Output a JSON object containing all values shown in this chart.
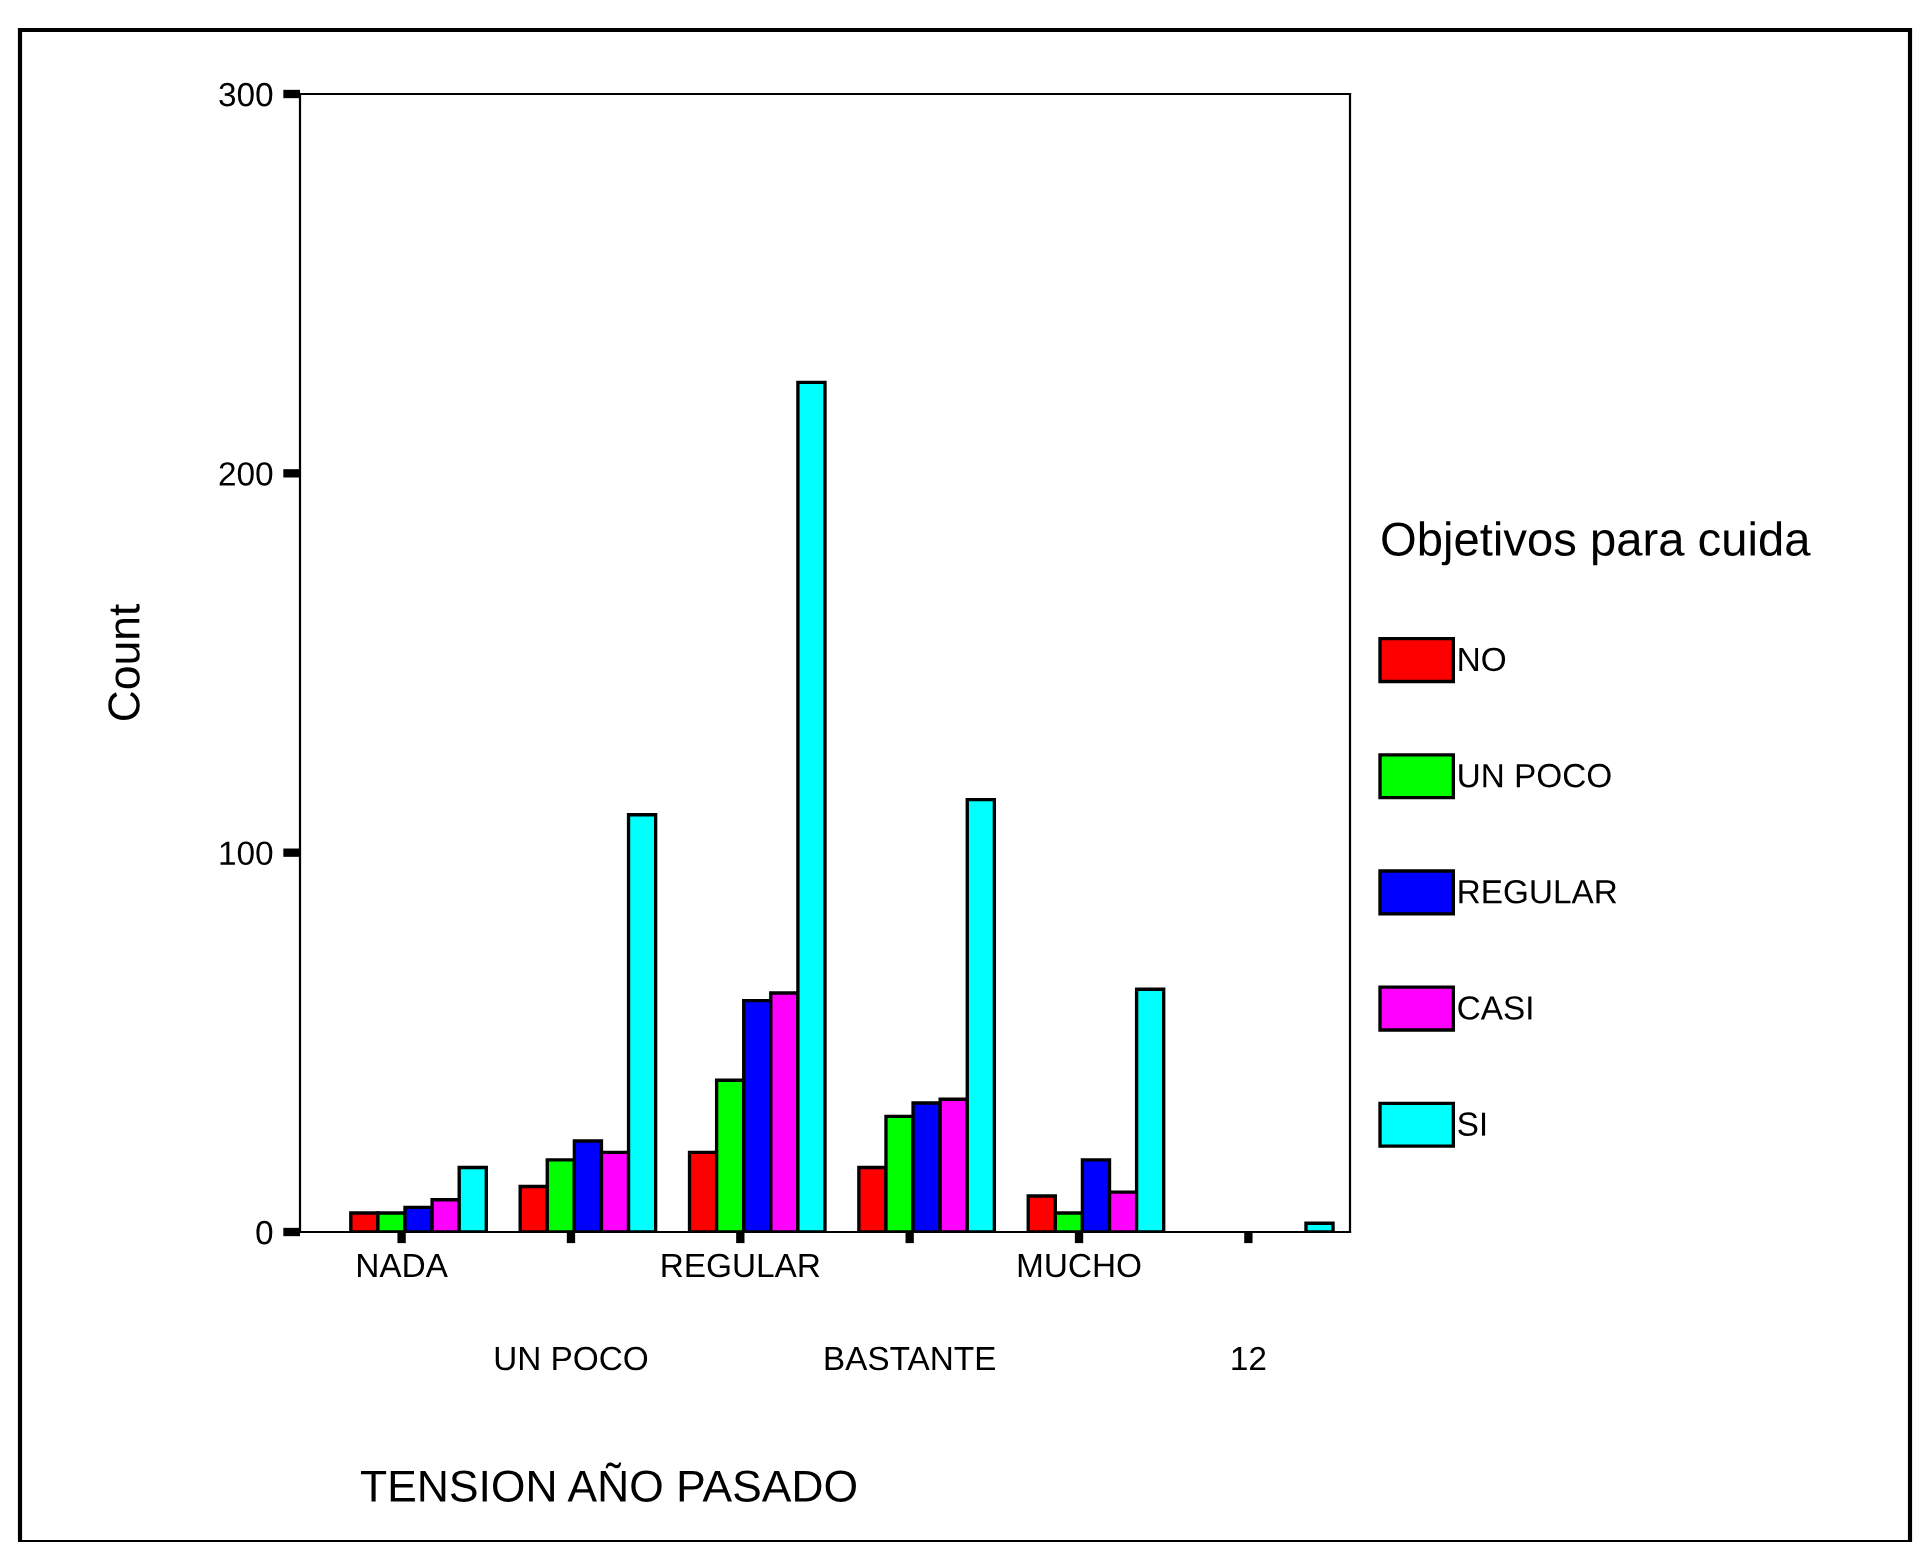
{
  "chart_data": {
    "type": "bar",
    "xlabel": "TENSION AÑO PASADO",
    "ylabel": "Count",
    "legend_title": "Objetivos para cuida",
    "categories": [
      "NADA",
      "UN POCO",
      "REGULAR",
      "BASTANTE",
      "MUCHO",
      "12"
    ],
    "series": [
      {
        "name": "NO",
        "color": "#ff0000",
        "values": [
          5,
          12,
          21,
          17,
          9.5,
          null
        ]
      },
      {
        "name": "UN POCO",
        "color": "#00ff00",
        "values": [
          5,
          19,
          40,
          30.5,
          5,
          null
        ]
      },
      {
        "name": "REGULAR",
        "color": "#0000ff",
        "values": [
          6.5,
          24,
          61,
          34,
          19,
          null
        ]
      },
      {
        "name": "CASI",
        "color": "#ff00ff",
        "values": [
          8.5,
          21,
          63,
          35,
          10.5,
          null
        ]
      },
      {
        "name": "SI",
        "color": "#00ffff",
        "values": [
          17,
          110,
          224,
          114,
          64,
          2.3
        ]
      }
    ],
    "ylim": [
      0,
      300
    ],
    "yticks": [
      0,
      100,
      200,
      300
    ],
    "grid": false,
    "legend": "right"
  }
}
